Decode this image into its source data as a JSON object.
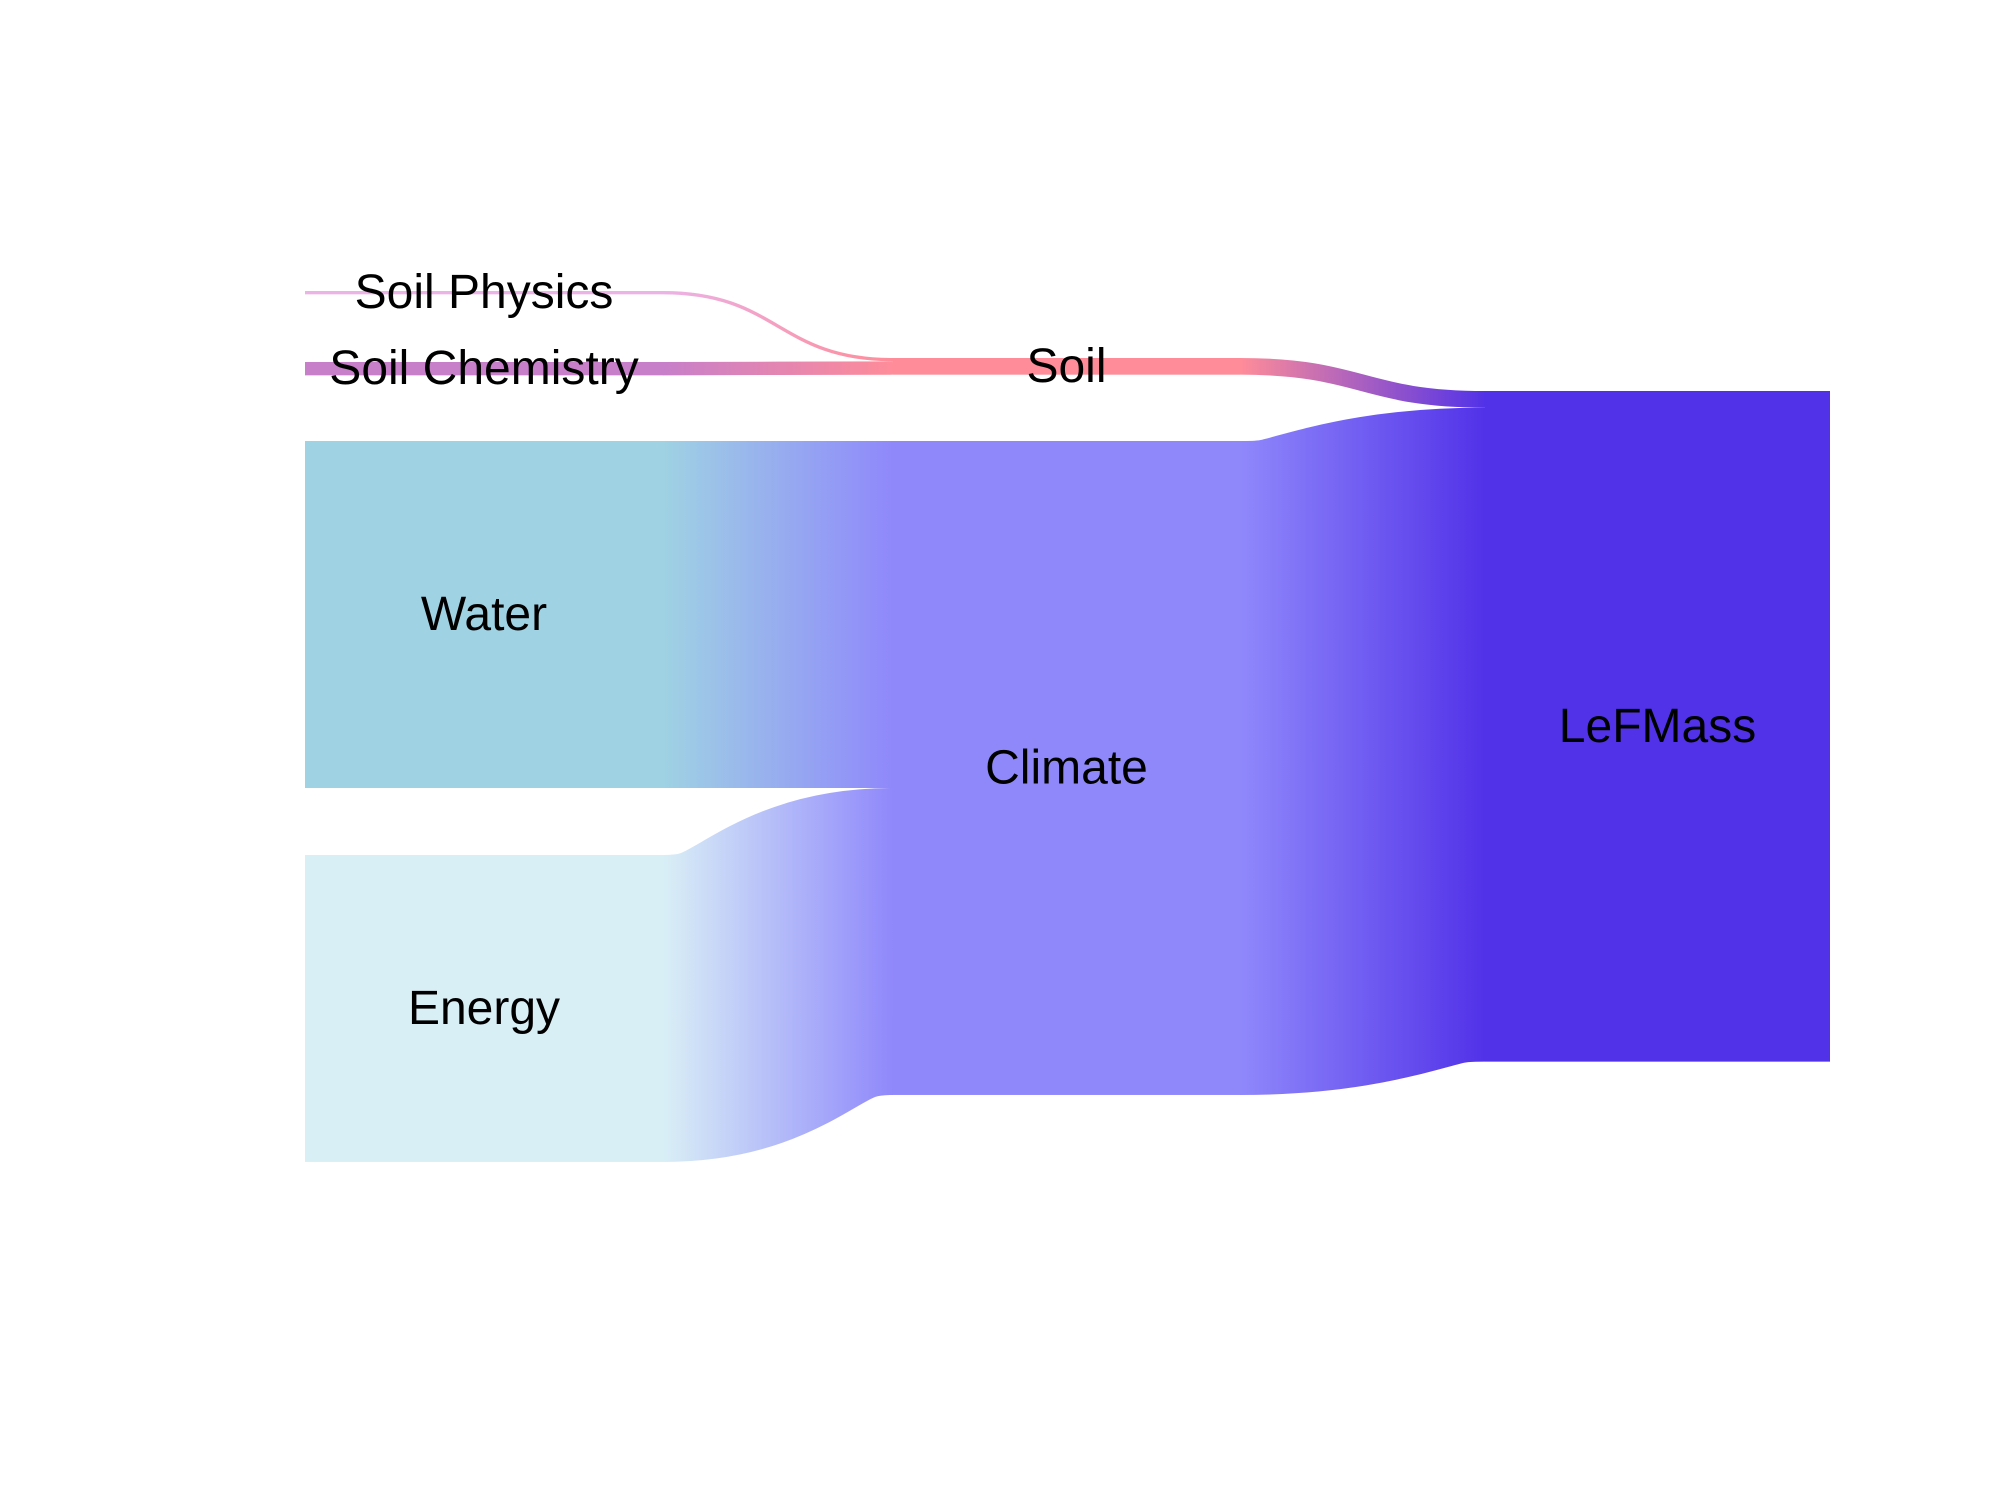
{
  "chart_data": {
    "type": "sankey",
    "nodes": [
      {
        "id": "soil_physics",
        "label": "Soil Physics",
        "color": "#ebb3e6"
      },
      {
        "id": "soil_chemistry",
        "label": "Soil Chemistry",
        "color": "#c77fc9"
      },
      {
        "id": "water",
        "label": "Water",
        "color": "#9fd2e3"
      },
      {
        "id": "energy",
        "label": "Energy",
        "color": "#d9eff6"
      },
      {
        "id": "soil",
        "label": "Soil",
        "color": "#ff8c99"
      },
      {
        "id": "climate",
        "label": "Climate",
        "color": "#8f88fb"
      },
      {
        "id": "lefmass",
        "label": "LeFMass",
        "color": "#5232e8"
      }
    ],
    "links": [
      {
        "source": "soil_physics",
        "target": "soil",
        "value": 0.5
      },
      {
        "source": "soil_chemistry",
        "target": "soil",
        "value": 2
      },
      {
        "source": "water",
        "target": "climate",
        "value": 52
      },
      {
        "source": "energy",
        "target": "climate",
        "value": 46
      },
      {
        "source": "soil",
        "target": "lefmass",
        "value": 2.5
      },
      {
        "source": "climate",
        "target": "lefmass",
        "value": 98
      }
    ]
  }
}
